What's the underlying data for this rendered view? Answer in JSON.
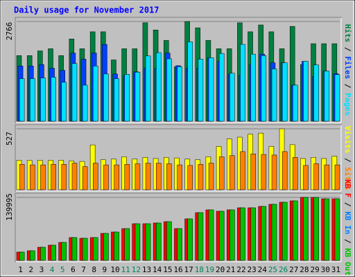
{
  "chart_data": [
    {
      "type": "bar",
      "title": "Daily usage for November 2017",
      "ylim": [
        0,
        2766
      ],
      "yticks": [
        2766
      ],
      "legend_separator": "/",
      "series": [
        {
          "name": "Hits",
          "color": "#008040",
          "values": [
            1820,
            1820,
            1950,
            2010,
            1820,
            2280,
            2010,
            2480,
            2480,
            1700,
            2010,
            2010,
            2730,
            2530,
            2240,
            1510,
            2766,
            2590,
            2240,
            2010,
            2010,
            2730,
            2480,
            2670,
            2480,
            2010,
            2630,
            1570,
            2150,
            2150,
            2150
          ]
        },
        {
          "name": "Files",
          "color": "#0040ff",
          "values": [
            1530,
            1530,
            1570,
            1470,
            1410,
            1890,
            1720,
            1890,
            2130,
            1310,
            1270,
            1370,
            1470,
            1470,
            1890,
            1540,
            1470,
            1470,
            1760,
            1660,
            1310,
            1270,
            1570,
            1860,
            1620,
            1620,
            1000,
            1660,
            1240,
            1390,
            1320
          ]
        },
        {
          "name": "Pages",
          "color": "#00e0ff",
          "values": [
            1180,
            1180,
            1200,
            1220,
            1080,
            1600,
            1000,
            1530,
            1310,
            1180,
            1300,
            1360,
            1810,
            1900,
            1730,
            1510,
            2200,
            1720,
            1760,
            1880,
            1330,
            2130,
            1860,
            1820,
            1450,
            1620,
            1000,
            1660,
            1560,
            1390,
            1290
          ]
        }
      ]
    },
    {
      "type": "bar",
      "ylim": [
        0,
        527
      ],
      "yticks": [
        527
      ],
      "legend_separator": "/",
      "series": [
        {
          "name": "Visits",
          "color": "#ffff00",
          "values": [
            255,
            255,
            255,
            255,
            255,
            250,
            245,
            388,
            260,
            265,
            285,
            265,
            280,
            270,
            280,
            275,
            265,
            260,
            285,
            375,
            440,
            455,
            480,
            490,
            375,
            527,
            390,
            270,
            280,
            270,
            290
          ]
        },
        {
          "name": "Sites",
          "color": "#ff8000",
          "values": [
            220,
            215,
            215,
            220,
            220,
            230,
            200,
            230,
            215,
            215,
            220,
            225,
            230,
            230,
            225,
            215,
            210,
            220,
            230,
            285,
            295,
            330,
            310,
            305,
            300,
            330,
            280,
            210,
            225,
            215,
            215
          ]
        }
      ]
    },
    {
      "type": "bar",
      "ylim": [
        0,
        139995
      ],
      "yticks": [
        139995
      ],
      "legend_separator": "/",
      "categories": [
        "1",
        "2",
        "3",
        "4",
        "5",
        "6",
        "7",
        "8",
        "9",
        "10",
        "11",
        "12",
        "13",
        "14",
        "15",
        "16",
        "17",
        "18",
        "19",
        "20",
        "21",
        "22",
        "23",
        "24",
        "25",
        "26",
        "27",
        "28",
        "29",
        "30",
        "31"
      ],
      "category_colors": [
        "#000000",
        "#000000",
        "#000000",
        "#00805c",
        "#00805c",
        "#000000",
        "#000000",
        "#000000",
        "#000000",
        "#000000",
        "#00805c",
        "#00805c",
        "#000000",
        "#000000",
        "#000000",
        "#000000",
        "#000000",
        "#00805c",
        "#00805c",
        "#000000",
        "#000000",
        "#000000",
        "#000000",
        "#000000",
        "#00805c",
        "#00805c",
        "#000000",
        "#000000",
        "#000000",
        "#000000",
        "#000000"
      ],
      "series": [
        {
          "name": "KB F",
          "color": "#ff0000",
          "values": [
            18500,
            21500,
            29200,
            33800,
            40000,
            50800,
            49200,
            50800,
            60000,
            63100,
            70700,
            81500,
            81500,
            83100,
            86100,
            70700,
            92300,
            106100,
            112300,
            109200,
            112300,
            116900,
            116900,
            120000,
            124600,
            129200,
            132300,
            139995,
            139900,
            136900,
            136900
          ]
        },
        {
          "name": "KB In",
          "color": "#0080ff",
          "values": [
            0,
            0,
            0,
            0,
            0,
            0,
            0,
            0,
            0,
            0,
            0,
            0,
            0,
            0,
            0,
            0,
            0,
            0,
            0,
            0,
            0,
            0,
            0,
            0,
            0,
            0,
            0,
            0,
            0,
            0,
            0
          ]
        },
        {
          "name": "KB Out",
          "color": "#00c000",
          "values": [
            18500,
            21500,
            29200,
            33800,
            40000,
            50800,
            49200,
            50800,
            60000,
            63100,
            70700,
            81500,
            81500,
            83100,
            86100,
            70700,
            92300,
            106100,
            112300,
            109200,
            112300,
            116900,
            116900,
            120000,
            124600,
            129200,
            132300,
            139995,
            139900,
            136900,
            136900
          ]
        }
      ]
    }
  ]
}
